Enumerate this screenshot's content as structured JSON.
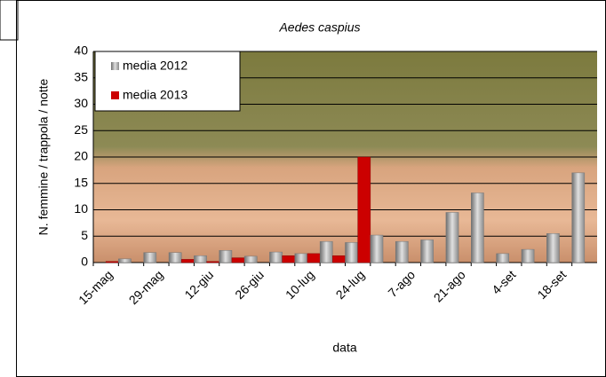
{
  "chart_data": {
    "type": "bar",
    "title": "Aedes caspius",
    "x_label": "data",
    "y_label": "N. femmine / trappola / notte",
    "categories": [
      "15-mag",
      null,
      "29-mag",
      null,
      "12-giu",
      null,
      "26-giu",
      null,
      "10-lug",
      null,
      "24-lug",
      null,
      "7-ago",
      null,
      "21-ago",
      null,
      "4-set",
      null,
      "18-set",
      null
    ],
    "series": [
      {
        "name": "media 2012",
        "color": "#a0a0a0",
        "values": [
          0,
          0.7,
          1.9,
          1.9,
          1.3,
          2.3,
          1.2,
          2.0,
          1.7,
          4.0,
          3.8,
          5.2,
          4.0,
          4.3,
          9.5,
          13.2,
          1.7,
          2.5,
          5.5,
          17
        ]
      },
      {
        "name": "media 2013",
        "color": "#cc0000",
        "values": [
          0.2,
          null,
          null,
          0.6,
          0.2,
          0.9,
          null,
          1.3,
          1.7,
          1.3,
          20,
          null,
          null,
          null,
          null,
          null,
          null,
          null,
          null,
          null
        ]
      }
    ],
    "ylim": [
      0,
      40
    ],
    "yticks": [
      0,
      5,
      10,
      15,
      20,
      25,
      30,
      35,
      40
    ],
    "grid": true,
    "legend": "top-left"
  }
}
